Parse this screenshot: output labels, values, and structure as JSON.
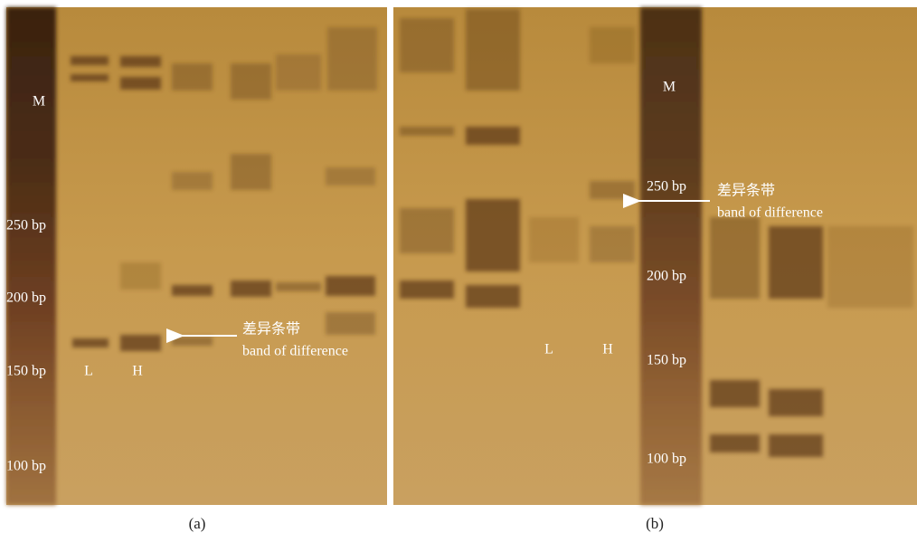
{
  "panels": [
    {
      "caption": "(a)",
      "marker_label": "M",
      "size_labels": [
        "250 bp",
        "200 bp",
        "150 bp",
        "100 bp"
      ],
      "lane_labels": [
        "L",
        "H"
      ],
      "annotation": [
        "差异条带",
        "band of difference"
      ]
    },
    {
      "caption": "(b)",
      "marker_label": "M",
      "size_labels": [
        "250 bp",
        "200 bp",
        "150 bp",
        "100 bp"
      ],
      "lane_labels": [
        "L",
        "H"
      ],
      "annotation": [
        "差异条带",
        "band of difference"
      ]
    }
  ]
}
